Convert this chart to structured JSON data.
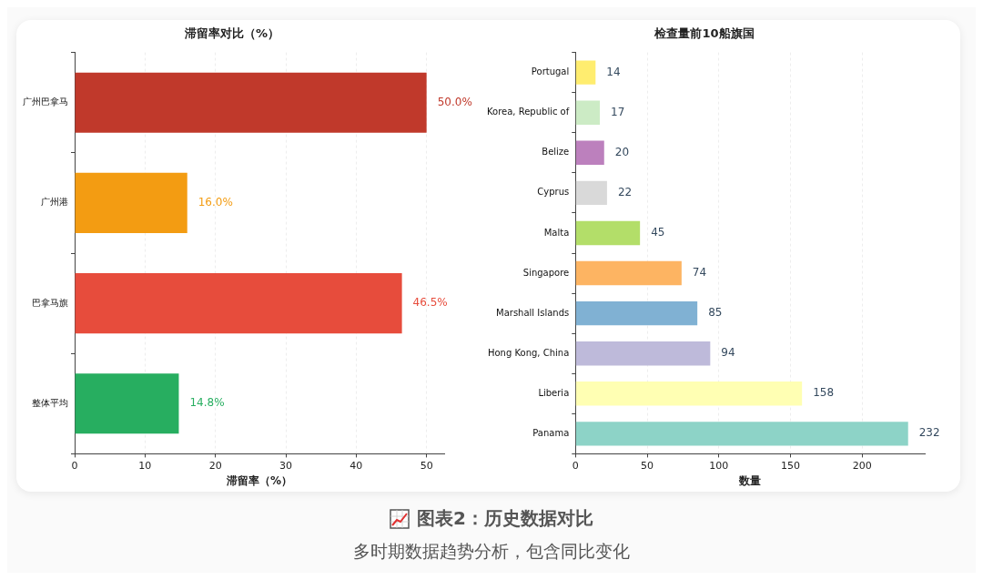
{
  "chart_data": [
    {
      "type": "bar",
      "orientation": "horizontal",
      "title": "滞留率对比（%）",
      "xlabel": "滞留率（%）",
      "categories": [
        "广州巴拿马",
        "广州港",
        "巴拿马旗",
        "整体平均"
      ],
      "values": [
        50.0,
        16.0,
        46.5,
        14.8
      ],
      "value_labels": [
        "50.0%",
        "16.0%",
        "46.5%",
        "14.8%"
      ],
      "colors": [
        "#c0392b",
        "#f39c12",
        "#e74c3c",
        "#27ae60"
      ],
      "xlim": [
        0,
        52.5
      ],
      "xticks": [
        0,
        10,
        20,
        30,
        40,
        50
      ],
      "grid": "x",
      "annotations": [
        "图表2：历史数据对比",
        "多时期数据趋势分析，包含同比变化"
      ]
    },
    {
      "type": "bar",
      "orientation": "horizontal",
      "title": "检查量前10船旗国",
      "xlabel": "数量",
      "categories": [
        "Portugal",
        "Korea, Republic of",
        "Belize",
        "Cyprus",
        "Malta",
        "Singapore",
        "Marshall Islands",
        "Hong Kong, China",
        "Liberia",
        "Panama"
      ],
      "values": [
        14,
        17,
        20,
        22,
        45,
        74,
        85,
        94,
        158,
        232
      ],
      "data_labels": true,
      "colors": [
        "#ffed6f",
        "#ccebc5",
        "#bc80bd",
        "#d9d9d9",
        "#b3de69",
        "#fdb462",
        "#80b1d3",
        "#bebada",
        "#ffffb3",
        "#8dd3c7"
      ],
      "xlim": [
        0,
        243.6
      ],
      "xticks": [
        0,
        50,
        100,
        150,
        200
      ],
      "grid": "x"
    }
  ]
}
